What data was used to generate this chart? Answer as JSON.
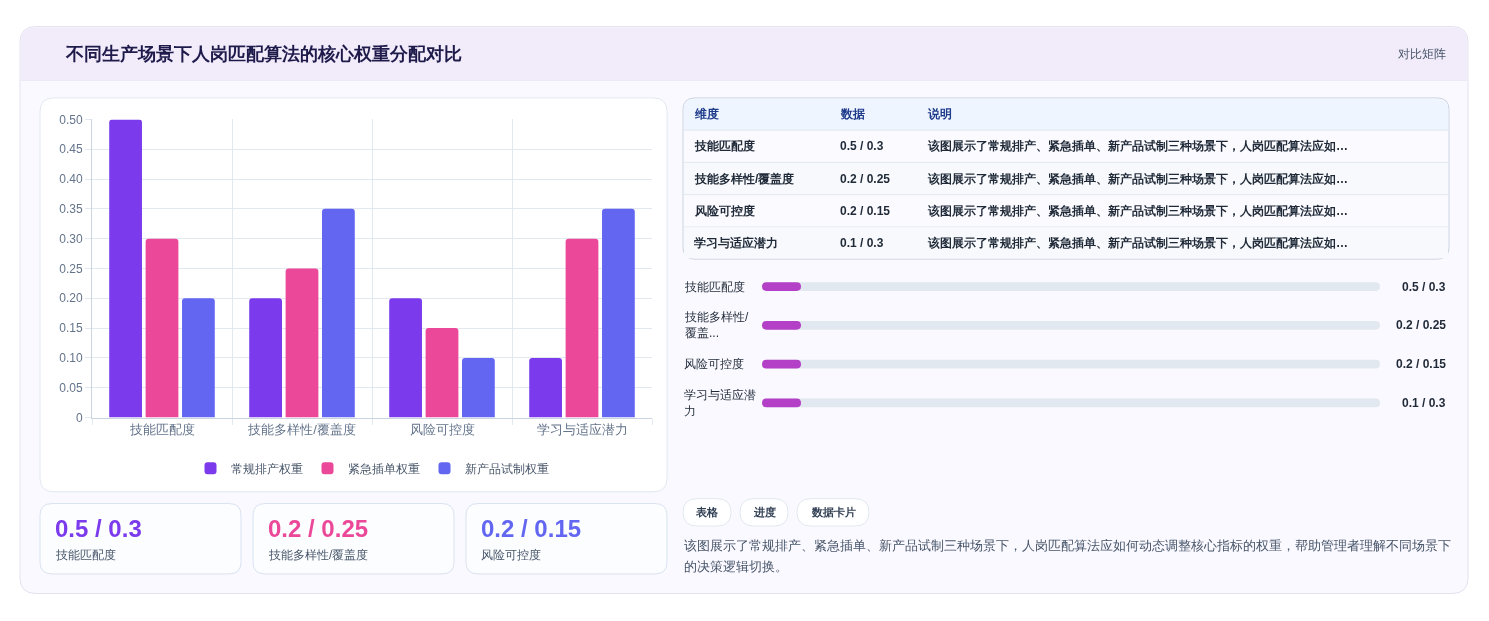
{
  "chart_data": [
    {
      "type": "bar",
      "title": "不同生产场景下人岗匹配算法的核心权重分配对比",
      "annotations": [
        "对比矩阵"
      ],
      "categories": [
        "技能匹配度",
        "技能多样性/覆盖度",
        "风险可控度",
        "学习与适应潜力"
      ],
      "series": [
        {
          "name": "常规排产权重",
          "color": "#7c3aed",
          "values": [
            0.5,
            0.2,
            0.2,
            0.1
          ]
        },
        {
          "name": "紧急插单权重",
          "color": "#ec4899",
          "values": [
            0.3,
            0.25,
            0.15,
            0.3
          ]
        },
        {
          "name": "新产品试制权重",
          "color": "#6366f1",
          "values": [
            0.2,
            0.35,
            0.1,
            0.35
          ]
        }
      ],
      "ylim": [
        0,
        0.5
      ],
      "yticks": [
        0,
        0.05,
        {
          "value": 0.1,
          "label": "0.10"
        },
        0.15,
        {
          "value": 0.2,
          "label": "0.20"
        },
        0.25,
        {
          "value": 0.3,
          "label": "0.30"
        },
        0.35,
        {
          "value": 0.4,
          "label": "0.40"
        },
        0.45,
        {
          "value": 0.5,
          "label": "0.50"
        }
      ],
      "grid": true,
      "legend": "bottom"
    },
    {
      "type": "other",
      "annotations": [
        "维度",
        "数据",
        "说明",
        "技能匹配度",
        "0.5 / 0.3",
        "该图展示了常规排产、紧急插单、新产品试制三种场景下，人岗匹配算法应如…",
        "技能多样性/覆盖度",
        "0.2 / 0.25",
        "该图展示了常规排产、紧急插单、新产品试制三种场景下，人岗匹配算法应如…",
        "风险可控度",
        "0.2 / 0.15",
        "该图展示了常规排产、紧急插单、新产品试制三种场景下，人岗匹配算法应如…",
        "学习与适应潜力",
        "0.1 / 0.3",
        "该图展示了常规排产、紧急插单、新产品试制三种场景下，人岗匹配算法应如…"
      ]
    },
    {
      "type": "other",
      "annotations": [
        "技能匹配度",
        "0.5 / 0.3",
        "技能多样性/覆盖...",
        "0.2 / 0.25",
        "风险可控度",
        "0.2 / 0.15",
        "学习与适应潜力",
        "0.1 / 0.3"
      ]
    },
    {
      "type": "other",
      "annotations": [
        "0.5 / 0.3",
        "技能匹配度",
        "0.2 / 0.25",
        "技能多样性/覆盖度",
        "0.2 / 0.15",
        "风险可控度"
      ],
      "colors": [
        "#7c3aed",
        "#ec4899",
        "#6366f1"
      ]
    },
    {
      "type": "other",
      "annotations": [
        "表格",
        "进度",
        "数据卡片",
        "该图展示了常规排产、紧急插单、新产品试制三种场景下，人岗匹配算法应如何动态调整核心指标的权重，帮助管理者理解不同场景下的决策逻辑切换。"
      ]
    }
  ]
}
